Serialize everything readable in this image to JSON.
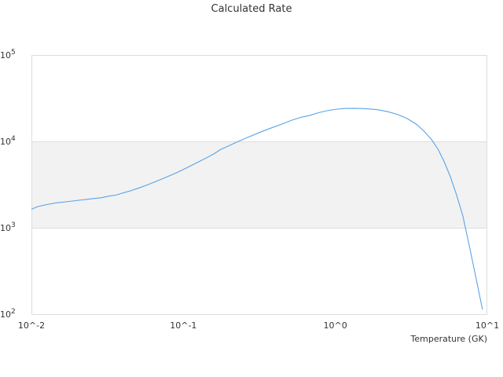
{
  "chart_data": {
    "type": "line",
    "title": "Calculated Rate",
    "xlabel": "Temperature (GK)",
    "ylabel": "",
    "x_scale": "log",
    "y_scale": "log",
    "xlim": [
      0.01,
      10
    ],
    "ylim": [
      100,
      100000
    ],
    "x_ticks": [
      {
        "value": 0.01,
        "label": "10^-2"
      },
      {
        "value": 0.1,
        "label": "10^-1"
      },
      {
        "value": 1,
        "label": "10^0"
      },
      {
        "value": 10,
        "label": "10^1"
      }
    ],
    "y_ticks": [
      {
        "value": 100,
        "label": "10^2"
      },
      {
        "value": 1000,
        "label": "10^3"
      },
      {
        "value": 10000,
        "label": "10^4"
      },
      {
        "value": 100000,
        "label": "10^5"
      }
    ],
    "grid": true,
    "band": {
      "from": 1000,
      "to": 10000,
      "color": "#f2f2f2"
    },
    "series": [
      {
        "color": "#5aa3e6",
        "points": [
          [
            0.01,
            1640
          ],
          [
            0.011,
            1760
          ],
          [
            0.0125,
            1850
          ],
          [
            0.0145,
            1940
          ],
          [
            0.017,
            2000
          ],
          [
            0.02,
            2070
          ],
          [
            0.024,
            2150
          ],
          [
            0.029,
            2230
          ],
          [
            0.032,
            2320
          ],
          [
            0.036,
            2390
          ],
          [
            0.04,
            2530
          ],
          [
            0.045,
            2680
          ],
          [
            0.051,
            2890
          ],
          [
            0.058,
            3140
          ],
          [
            0.066,
            3440
          ],
          [
            0.077,
            3850
          ],
          [
            0.09,
            4330
          ],
          [
            0.105,
            4930
          ],
          [
            0.122,
            5640
          ],
          [
            0.142,
            6450
          ],
          [
            0.16,
            7230
          ],
          [
            0.175,
            8020
          ],
          [
            0.2,
            8910
          ],
          [
            0.23,
            9990
          ],
          [
            0.27,
            11280
          ],
          [
            0.32,
            12770
          ],
          [
            0.38,
            14330
          ],
          [
            0.45,
            15990
          ],
          [
            0.52,
            17650
          ],
          [
            0.6,
            19070
          ],
          [
            0.68,
            19980
          ],
          [
            0.77,
            21420
          ],
          [
            0.88,
            22620
          ],
          [
            1.0,
            23470
          ],
          [
            1.15,
            24040
          ],
          [
            1.35,
            24130
          ],
          [
            1.6,
            23880
          ],
          [
            1.9,
            23230
          ],
          [
            2.2,
            22120
          ],
          [
            2.55,
            20590
          ],
          [
            2.95,
            18500
          ],
          [
            3.4,
            15900
          ],
          [
            3.85,
            13020
          ],
          [
            4.3,
            10480
          ],
          [
            4.75,
            8070
          ],
          [
            5.2,
            5830
          ],
          [
            5.7,
            3950
          ],
          [
            6.25,
            2460
          ],
          [
            6.9,
            1380
          ],
          [
            7.6,
            630
          ],
          [
            8.4,
            270
          ],
          [
            9.3,
            113
          ]
        ]
      }
    ]
  }
}
